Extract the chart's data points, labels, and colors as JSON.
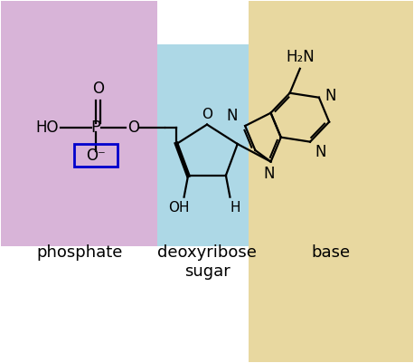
{
  "fig_width": 4.58,
  "fig_height": 4.01,
  "dpi": 100,
  "bg_color": "#ffffff",
  "phosphate_bg": "#d8b4d8",
  "sugar_bg": "#add8e6",
  "base_bg": "#e8d8a0",
  "phosphate_label": "phosphate",
  "sugar_label": "deoxyribose\nsugar",
  "base_label": "base",
  "label_fontsize": 13,
  "chem_fontsize": 12,
  "label_color": "#000000",
  "line_color": "#000000",
  "box_color": "#0000cc"
}
